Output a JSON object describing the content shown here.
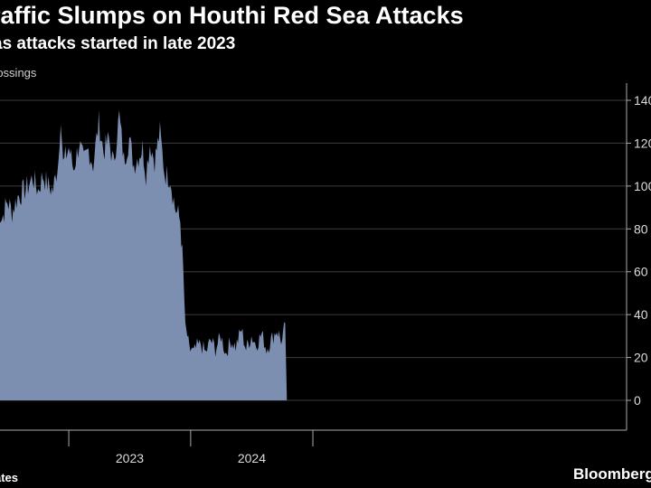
{
  "header": {
    "title": "raffic Slumps on Houthi Red Sea Attacks",
    "subtitle": "as attacks started in late 2023",
    "unit_label": "rossings"
  },
  "footer": {
    "source": "ates",
    "brand": "Bloomberg"
  },
  "colors": {
    "background": "#000000",
    "area_fill": "#7d8fb0",
    "gridline": "#3d3d3d",
    "axis": "#aaaaaa",
    "text": "#ffffff"
  },
  "chart_data": {
    "type": "area",
    "title": "raffic Slumps on Houthi Red Sea Attacks",
    "subtitle": "as attacks started in late 2023",
    "ylabel": "rossings",
    "ylim": [
      0,
      145
    ],
    "yticks": [
      0,
      20,
      40,
      60,
      80,
      100,
      120,
      140
    ],
    "ytick_labels": [
      "0",
      "20",
      "40",
      "60",
      "80",
      "100",
      "120",
      "140"
    ],
    "xlim": [
      "2022-06-01",
      "2024-10-31"
    ],
    "xtick_dates": [
      "2023-01-01",
      "2024-01-01"
    ],
    "xtick_labels": [
      "2023",
      "2024"
    ],
    "grid": "horizontal",
    "series": [
      {
        "x": [
          "2022-06-01",
          "2022-06-15",
          "2022-07-01",
          "2022-07-15",
          "2022-08-01",
          "2022-08-15",
          "2022-09-01",
          "2022-09-15",
          "2022-10-01",
          "2022-10-15",
          "2022-11-01",
          "2022-11-15",
          "2022-12-01",
          "2022-12-08",
          "2022-12-15",
          "2023-01-01",
          "2023-01-15",
          "2023-02-01",
          "2023-02-15",
          "2023-03-01",
          "2023-03-15",
          "2023-04-01",
          "2023-04-15",
          "2023-05-01",
          "2023-05-15",
          "2023-06-01",
          "2023-06-15",
          "2023-07-01",
          "2023-07-15",
          "2023-08-01",
          "2023-08-10",
          "2023-08-20",
          "2023-09-01",
          "2023-09-15",
          "2023-10-01",
          "2023-10-15",
          "2023-11-01",
          "2023-11-15",
          "2023-12-01",
          "2023-12-10",
          "2023-12-16",
          "2023-12-22",
          "2023-12-28",
          "2024-01-03",
          "2024-01-10",
          "2024-01-20",
          "2024-02-01",
          "2024-02-15",
          "2024-03-01",
          "2024-03-15",
          "2024-04-01",
          "2024-04-15",
          "2024-05-01",
          "2024-05-15",
          "2024-06-01",
          "2024-06-15",
          "2024-07-01",
          "2024-07-15",
          "2024-08-01",
          "2024-08-15",
          "2024-09-01",
          "2024-09-15",
          "2024-10-01",
          "2024-10-10",
          "2024-10-15"
        ],
        "values": [
          90,
          85,
          93,
          88,
          95,
          97,
          100,
          104,
          98,
          105,
          100,
          98,
          112,
          134,
          110,
          118,
          108,
          120,
          111,
          117,
          110,
          130,
          116,
          122,
          110,
          133,
          112,
          122,
          110,
          115,
          118,
          106,
          120,
          112,
          125,
          106,
          104,
          90,
          84,
          60,
          33,
          30,
          23,
          24,
          22,
          25,
          26,
          22,
          28,
          24,
          30,
          22,
          28,
          25,
          33,
          24,
          30,
          26,
          31,
          24,
          29,
          33,
          27,
          36,
          2
        ]
      }
    ]
  }
}
